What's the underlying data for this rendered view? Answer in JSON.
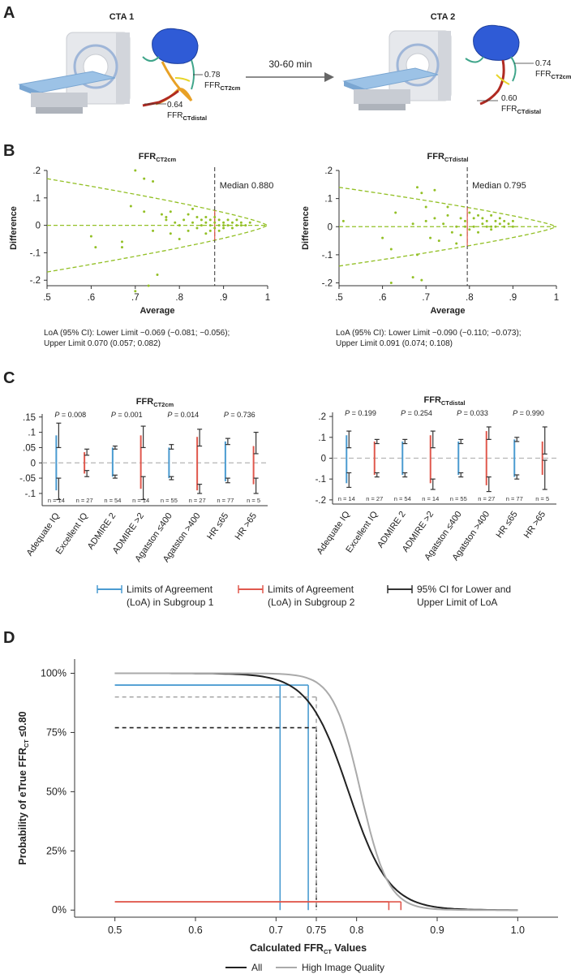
{
  "panel_a": {
    "letter": "A",
    "cta1": "CTA 1",
    "cta2": "CTA 2",
    "interval": "30-60 min",
    "cta1_values": [
      {
        "value": "0.78",
        "label": "FFR",
        "sub": "CT2cm"
      },
      {
        "value": "0.64",
        "label": "FFR",
        "sub": "CTdistal"
      }
    ],
    "cta2_values": [
      {
        "value": "0.74",
        "label": "FFR",
        "sub": "CT2cm"
      },
      {
        "value": "0.60",
        "label": "FFR",
        "sub": "CTdistal"
      }
    ]
  },
  "panel_b": {
    "letter": "B",
    "loa_left": [
      "LoA (95% CI): Lower Limit −0.069 (−0.081; −0.056);",
      "Upper Limit 0.070 (0.057; 0.082)"
    ],
    "loa_right": [
      "LoA (95% CI): Lower Limit −0.090 (−0.110; −0.073);",
      "Upper Limit 0.091 (0.074; 0.108)"
    ]
  },
  "panel_c": {
    "letter": "C",
    "legend": [
      {
        "line1": "Limits of Agreement",
        "line2": "(LoA) in Subgroup 1",
        "color": "#4a9bd1"
      },
      {
        "line1": "Limits of Agreement",
        "line2": "(LoA) in Subgroup 2",
        "color": "#e0584d"
      },
      {
        "line1": "95% CI for Lower and",
        "line2": "Upper Limit of LoA",
        "color": "#333333"
      }
    ]
  },
  "panel_d": {
    "letter": "D"
  },
  "colors": {
    "green": "#93c026",
    "blue": "#4a9bd1",
    "red": "#e0584d",
    "dark": "#222222",
    "gray": "#aaaaaa"
  },
  "chart_data": [
    {
      "id": "b_left",
      "type": "scatter",
      "title": "FFR",
      "title_sub": "CT2cm",
      "xlabel": "Average",
      "ylabel": "Difference",
      "xlim": [
        0.5,
        1.0
      ],
      "ylim": [
        -0.22,
        0.2
      ],
      "xticks": [
        ".5",
        ".6",
        ".7",
        ".8",
        ".9",
        "1"
      ],
      "yticks": [
        ".2",
        ".1",
        "0",
        "-.1",
        "-.2"
      ],
      "median": 0.88,
      "median_label": "Median 0.880",
      "loa_at_min": 0.17,
      "points": [
        [
          0.6,
          -0.04
        ],
        [
          0.61,
          -0.08
        ],
        [
          0.67,
          -0.08
        ],
        [
          0.67,
          -0.06
        ],
        [
          0.69,
          0.07
        ],
        [
          0.7,
          0.2
        ],
        [
          0.7,
          -0.24
        ],
        [
          0.72,
          0.05
        ],
        [
          0.72,
          0.17
        ],
        [
          0.73,
          -0.22
        ],
        [
          0.74,
          -0.02
        ],
        [
          0.74,
          0.16
        ],
        [
          0.75,
          -0.18
        ],
        [
          0.76,
          0.04
        ],
        [
          0.77,
          0.03
        ],
        [
          0.77,
          0.02
        ],
        [
          0.78,
          0.05
        ],
        [
          0.78,
          -0.03
        ],
        [
          0.79,
          0.01
        ],
        [
          0.8,
          0.0
        ],
        [
          0.8,
          -0.05
        ],
        [
          0.81,
          0.02
        ],
        [
          0.82,
          0.04
        ],
        [
          0.82,
          -0.02
        ],
        [
          0.83,
          0.01
        ],
        [
          0.83,
          0.06
        ],
        [
          0.84,
          0.03
        ],
        [
          0.84,
          -0.01
        ],
        [
          0.85,
          0.0
        ],
        [
          0.85,
          0.02
        ],
        [
          0.86,
          -0.03
        ],
        [
          0.86,
          0.03
        ],
        [
          0.86,
          0.01
        ],
        [
          0.87,
          0.0
        ],
        [
          0.87,
          -0.02
        ],
        [
          0.87,
          0.02
        ],
        [
          0.88,
          0.01
        ],
        [
          0.88,
          -0.01
        ],
        [
          0.88,
          0.03
        ],
        [
          0.89,
          0.0
        ],
        [
          0.89,
          0.02
        ],
        [
          0.89,
          -0.02
        ],
        [
          0.9,
          0.01
        ],
        [
          0.9,
          0.0
        ],
        [
          0.9,
          -0.01
        ],
        [
          0.91,
          0.02
        ],
        [
          0.91,
          0.0
        ],
        [
          0.92,
          0.01
        ],
        [
          0.92,
          -0.01
        ],
        [
          0.93,
          0.0
        ],
        [
          0.93,
          0.02
        ],
        [
          0.94,
          0.01
        ],
        [
          0.94,
          0.0
        ],
        [
          0.95,
          0.0
        ],
        [
          0.96,
          0.01
        ]
      ]
    },
    {
      "id": "b_right",
      "type": "scatter",
      "title": "FFR",
      "title_sub": "CTdistal",
      "xlabel": "Average",
      "ylabel": "Difference",
      "xlim": [
        0.5,
        1.0
      ],
      "ylim": [
        -0.21,
        0.2
      ],
      "xticks": [
        ".5",
        ".6",
        ".7",
        ".8",
        ".9",
        "1"
      ],
      "yticks": [
        ".2",
        ".1",
        "0",
        "-.1",
        "-.2"
      ],
      "median": 0.795,
      "median_label": "Median 0.795",
      "loa_at_min": 0.14,
      "points": [
        [
          0.51,
          0.02
        ],
        [
          0.6,
          -0.04
        ],
        [
          0.62,
          -0.08
        ],
        [
          0.62,
          -0.2
        ],
        [
          0.63,
          0.05
        ],
        [
          0.67,
          -0.18
        ],
        [
          0.67,
          0.01
        ],
        [
          0.68,
          0.14
        ],
        [
          0.68,
          -0.1
        ],
        [
          0.69,
          0.12
        ],
        [
          0.69,
          -0.19
        ],
        [
          0.7,
          0.02
        ],
        [
          0.7,
          0.07
        ],
        [
          0.71,
          -0.04
        ],
        [
          0.72,
          0.03
        ],
        [
          0.72,
          0.13
        ],
        [
          0.73,
          -0.05
        ],
        [
          0.74,
          0.01
        ],
        [
          0.75,
          0.07
        ],
        [
          0.75,
          0.04
        ],
        [
          0.76,
          -0.02
        ],
        [
          0.77,
          -0.06
        ],
        [
          0.77,
          0.0
        ],
        [
          0.78,
          0.03
        ],
        [
          0.78,
          -0.03
        ],
        [
          0.79,
          0.02
        ],
        [
          0.79,
          0.0
        ],
        [
          0.8,
          0.05
        ],
        [
          0.8,
          -0.01
        ],
        [
          0.81,
          0.03
        ],
        [
          0.81,
          0.0
        ],
        [
          0.82,
          0.04
        ],
        [
          0.82,
          -0.02
        ],
        [
          0.83,
          0.01
        ],
        [
          0.83,
          0.03
        ],
        [
          0.84,
          0.0
        ],
        [
          0.84,
          0.02
        ],
        [
          0.85,
          0.04
        ],
        [
          0.85,
          0.0
        ],
        [
          0.85,
          -0.01
        ],
        [
          0.86,
          0.02
        ],
        [
          0.86,
          0.0
        ],
        [
          0.87,
          0.01
        ],
        [
          0.87,
          0.03
        ],
        [
          0.88,
          0.0
        ],
        [
          0.88,
          0.02
        ],
        [
          0.89,
          0.01
        ],
        [
          0.9,
          0.0
        ],
        [
          0.9,
          0.02
        ]
      ]
    },
    {
      "id": "c_left",
      "type": "errorbar",
      "title": "FFR",
      "title_sub": "CT2cm",
      "ylim": [
        -0.14,
        0.16
      ],
      "yticks": [
        ".15",
        ".1",
        ".05",
        "0",
        "-.05",
        "-.1"
      ],
      "categories": [
        "Adequate IQ",
        "Excellent IQ",
        "ADMIRE 2",
        "ADMIRE >2",
        "Agatston ≤400",
        "Agatston >400",
        "HR ≤65",
        "HR >65"
      ],
      "p_values": [
        "0.008",
        "0.001",
        "0.014",
        "0.736"
      ],
      "n": [
        "n = 14",
        "n = 27",
        "n = 54",
        "n = 14",
        "n = 55",
        "n = 27",
        "n = 77",
        "n = 5"
      ],
      "groups": [
        "blue",
        "red",
        "blue",
        "red",
        "blue",
        "red",
        "blue",
        "red"
      ],
      "lower": [
        -0.09,
        -0.035,
        -0.045,
        -0.085,
        -0.05,
        -0.09,
        -0.06,
        -0.07
      ],
      "upper": [
        0.09,
        0.035,
        0.05,
        0.09,
        0.05,
        0.085,
        0.07,
        0.055
      ],
      "ci_lower": [
        [
          -0.12,
          -0.05
        ],
        [
          -0.045,
          -0.025
        ],
        [
          -0.05,
          -0.04
        ],
        [
          -0.12,
          -0.045
        ],
        [
          -0.055,
          -0.045
        ],
        [
          -0.1,
          -0.07
        ],
        [
          -0.065,
          -0.05
        ],
        [
          -0.1,
          -0.05
        ]
      ],
      "ci_upper": [
        [
          0.05,
          0.13
        ],
        [
          0.025,
          0.045
        ],
        [
          0.045,
          0.055
        ],
        [
          0.05,
          0.12
        ],
        [
          0.045,
          0.06
        ],
        [
          0.055,
          0.11
        ],
        [
          0.06,
          0.08
        ],
        [
          0.03,
          0.1
        ]
      ]
    },
    {
      "id": "c_right",
      "type": "errorbar",
      "title": "FFR",
      "title_sub": "CTdistal",
      "ylim": [
        -0.22,
        0.22
      ],
      "yticks": [
        ".2",
        ".1",
        "0",
        "-.1",
        "-.2"
      ],
      "categories": [
        "Adequate IQ",
        "Excellent IQ",
        "ADMIRE 2",
        "ADMIRE >2",
        "Agatston ≤400",
        "Agatston >400",
        "HR ≤65",
        "HR >65"
      ],
      "p_values": [
        "0.199",
        "0.254",
        "0.033",
        "0.990"
      ],
      "n": [
        "n = 14",
        "n = 27",
        "n = 54",
        "n = 14",
        "n = 55",
        "n = 27",
        "n = 77",
        "n = 5"
      ],
      "groups": [
        "blue",
        "red",
        "blue",
        "red",
        "blue",
        "red",
        "blue",
        "red"
      ],
      "lower": [
        -0.12,
        -0.08,
        -0.08,
        -0.12,
        -0.08,
        -0.13,
        -0.09,
        -0.08
      ],
      "upper": [
        0.11,
        0.08,
        0.08,
        0.11,
        0.08,
        0.13,
        0.09,
        0.08
      ],
      "ci_lower": [
        [
          -0.14,
          -0.07
        ],
        [
          -0.09,
          -0.07
        ],
        [
          -0.09,
          -0.07
        ],
        [
          -0.15,
          -0.1
        ],
        [
          -0.09,
          -0.07
        ],
        [
          -0.16,
          -0.09
        ],
        [
          -0.1,
          -0.08
        ],
        [
          -0.15,
          -0.01
        ]
      ],
      "ci_upper": [
        [
          0.05,
          0.13
        ],
        [
          0.07,
          0.09
        ],
        [
          0.07,
          0.09
        ],
        [
          0.05,
          0.13
        ],
        [
          0.07,
          0.09
        ],
        [
          0.09,
          0.15
        ],
        [
          0.08,
          0.1
        ],
        [
          0.02,
          0.15
        ]
      ]
    },
    {
      "id": "d",
      "type": "line",
      "xlabel": "Calculated FFR",
      "xlabel_sub": "CT",
      "xlabel_tail": " Values",
      "ylabel": "Probability of eTrue FFR",
      "ylabel_sub": "CT",
      "ylabel_tail": " ≤0.80",
      "xlim": [
        0.45,
        1.05
      ],
      "ylim": [
        -3,
        106
      ],
      "xticks": [
        0.5,
        0.6,
        0.7,
        0.75,
        0.8,
        0.9,
        1.0
      ],
      "xtick_labels": [
        "0.5",
        "0.6",
        "0.7",
        "0.75",
        "0.8",
        "0.9",
        "1.0"
      ],
      "yticks": [
        0,
        25,
        50,
        75,
        100
      ],
      "ytick_labels": [
        "0%",
        "25%",
        "50%",
        "75%",
        "100%"
      ],
      "series": [
        {
          "name": "All",
          "color": "#222222",
          "midpoint": 0.79,
          "scale": 0.025
        },
        {
          "name": "High Image Quality",
          "color": "#aaaaaa",
          "midpoint": 0.805,
          "scale": 0.017
        }
      ],
      "reference_lines": [
        {
          "x": 0.705,
          "y": 95,
          "color": "#4a9bd1",
          "style": "solid"
        },
        {
          "x": 0.74,
          "y": 95,
          "color": "#4a9bd1",
          "style": "solid"
        },
        {
          "x": 0.75,
          "y": 77,
          "color": "#222222",
          "style": "dashed"
        },
        {
          "x": 0.75,
          "y": 90,
          "color": "#aaaaaa",
          "style": "dashed"
        },
        {
          "x": 0.84,
          "y": 3.5,
          "color": "#e0584d",
          "style": "solid"
        },
        {
          "x": 0.855,
          "y": 3.5,
          "color": "#e0584d",
          "style": "solid"
        }
      ]
    }
  ]
}
